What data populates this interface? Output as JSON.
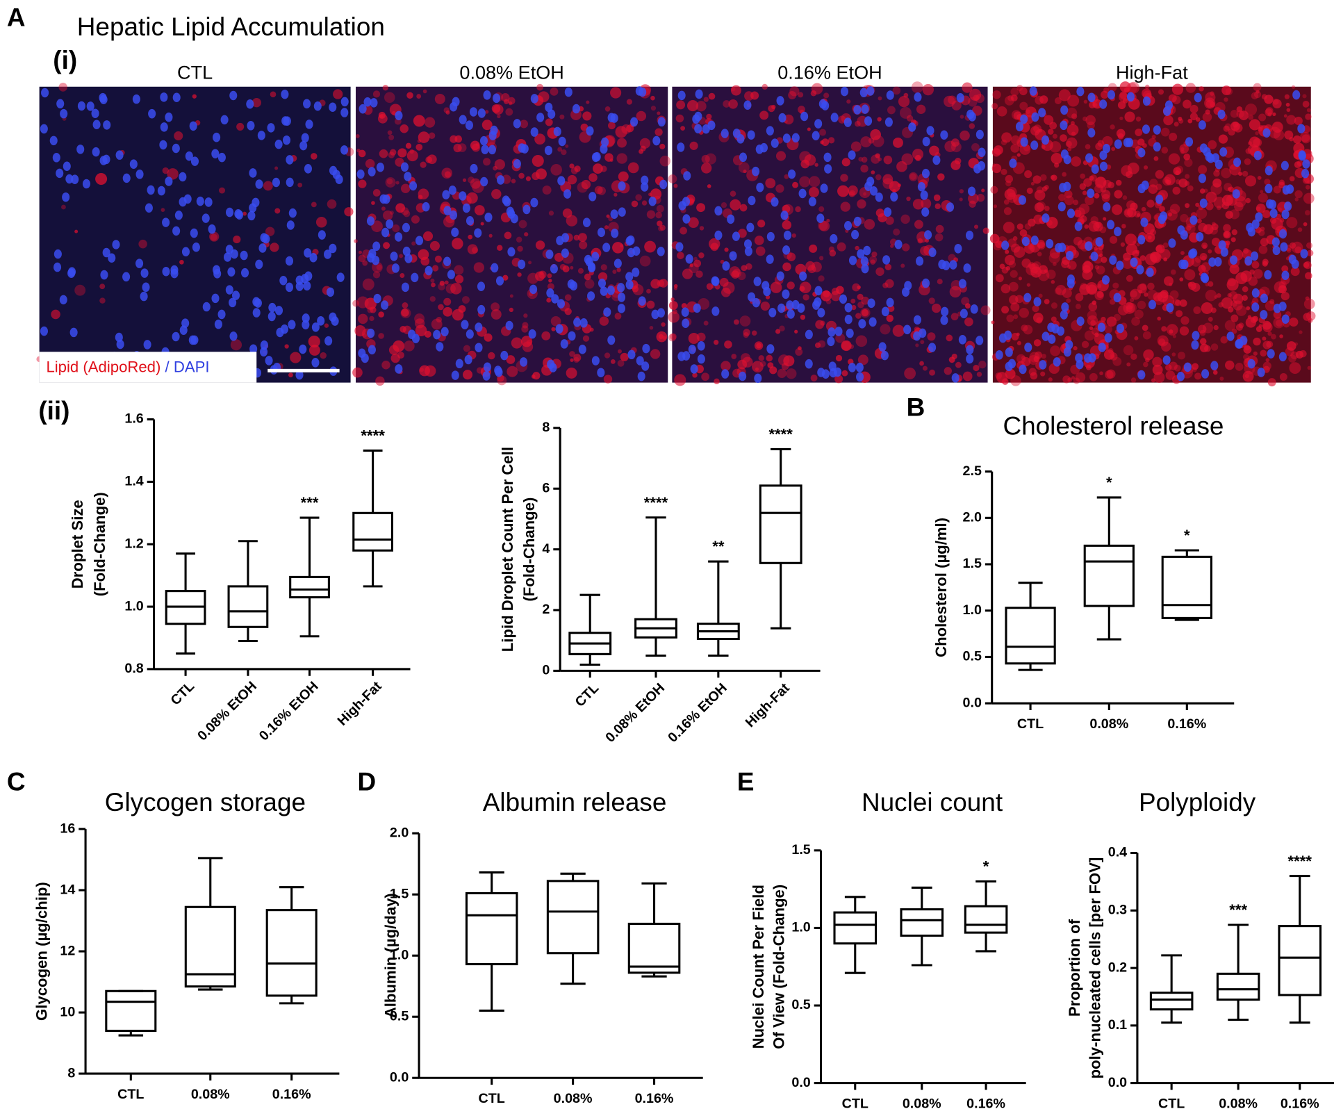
{
  "figure": {
    "panels": [
      "A",
      "B",
      "C",
      "D",
      "E"
    ],
    "title": "Hepatic Lipid Accumulation",
    "sub_i": "(i)",
    "sub_ii": "(ii)",
    "image_labels": [
      "CTL",
      "0.08% EtOH",
      "0.16% EtOH",
      "High-Fat"
    ],
    "legend": {
      "lipid": "Lipid (AdipoRed)",
      "sep": " / ",
      "dapi": "DAPI"
    }
  },
  "chart_data": [
    {
      "type": "box",
      "ylabel": [
        "Droplet Size",
        "(Fold-Change)"
      ],
      "categories": [
        "CTL",
        "0.08% EtOH",
        "0.16% EtOH",
        "High-Fat"
      ],
      "rotate_labels": true,
      "boxes": [
        {
          "min": 0.85,
          "q1": 0.945,
          "median": 1.0,
          "q3": 1.05,
          "max": 1.17
        },
        {
          "min": 0.89,
          "q1": 0.935,
          "median": 0.985,
          "q3": 1.065,
          "max": 1.21
        },
        {
          "min": 0.905,
          "q1": 1.03,
          "median": 1.055,
          "q3": 1.095,
          "max": 1.285
        },
        {
          "min": 1.065,
          "q1": 1.18,
          "median": 1.215,
          "q3": 1.3,
          "max": 1.5
        }
      ],
      "significance": [
        null,
        null,
        "***",
        "****"
      ],
      "ylim": [
        0.8,
        1.6
      ],
      "yticks": [
        0.8,
        {
          "value": 1,
          "label": "1.0"
        },
        1.2,
        1.4,
        1.6
      ]
    },
    {
      "type": "box",
      "ylabel": [
        "Lipid Droplet Count Per Cell",
        "(Fold-Change)"
      ],
      "categories": [
        "CTL",
        "0.08% EtOH",
        "0.16% EtOH",
        "High-Fat"
      ],
      "rotate_labels": true,
      "boxes": [
        {
          "min": 0.2,
          "q1": 0.55,
          "median": 0.9,
          "q3": 1.25,
          "max": 2.5
        },
        {
          "min": 0.5,
          "q1": 1.1,
          "median": 1.4,
          "q3": 1.7,
          "max": 5.05
        },
        {
          "min": 0.5,
          "q1": 1.05,
          "median": 1.3,
          "q3": 1.55,
          "max": 3.6
        },
        {
          "min": 1.4,
          "q1": 3.55,
          "median": 5.2,
          "q3": 6.1,
          "max": 7.3
        }
      ],
      "significance": [
        null,
        "****",
        "**",
        "****"
      ],
      "ylim": [
        0,
        8
      ],
      "yticks": [
        0,
        2,
        4,
        6,
        8
      ]
    },
    {
      "type": "box",
      "title": "Cholesterol release",
      "ylabel": [
        "Cholesterol (µg/ml)"
      ],
      "categories": [
        "CTL",
        "0.08%",
        "0.16%"
      ],
      "boxes": [
        {
          "min": 0.36,
          "q1": 0.43,
          "median": 0.61,
          "q3": 1.03,
          "max": 1.3
        },
        {
          "min": 0.69,
          "q1": 1.05,
          "median": 1.53,
          "q3": 1.7,
          "max": 2.22
        },
        {
          "min": 0.9,
          "q1": 0.92,
          "median": 1.06,
          "q3": 1.58,
          "max": 1.65
        }
      ],
      "significance": [
        null,
        "*",
        "*"
      ],
      "ylim": [
        0,
        2.5
      ],
      "yticks": [
        {
          "value": 0,
          "label": "0.0"
        },
        0.5,
        {
          "value": 1,
          "label": "1.0"
        },
        1.5,
        {
          "value": 2,
          "label": "2.0"
        },
        2.5
      ]
    },
    {
      "type": "box",
      "title": "Glycogen storage",
      "ylabel": [
        "Glycogen (µg/chip)"
      ],
      "categories": [
        "CTL",
        "0.08%",
        "0.16%"
      ],
      "boxes": [
        {
          "min": 9.25,
          "q1": 9.4,
          "median": 10.35,
          "q3": 10.7,
          "max": 10.7
        },
        {
          "min": 10.75,
          "q1": 10.85,
          "median": 11.25,
          "q3": 13.45,
          "max": 15.05
        },
        {
          "min": 10.3,
          "q1": 10.55,
          "median": 11.6,
          "q3": 13.35,
          "max": 14.1
        }
      ],
      "ylim": [
        8,
        16
      ],
      "yticks": [
        8,
        10,
        12,
        14,
        16
      ]
    },
    {
      "type": "box",
      "title": "Albumin release",
      "ylabel": [
        "Albumin (µg/day)"
      ],
      "categories": [
        "CTL",
        "0.08%",
        "0.16%"
      ],
      "boxes": [
        {
          "min": 0.55,
          "q1": 0.93,
          "median": 1.33,
          "q3": 1.51,
          "max": 1.68
        },
        {
          "min": 0.77,
          "q1": 1.02,
          "median": 1.36,
          "q3": 1.61,
          "max": 1.67
        },
        {
          "min": 0.83,
          "q1": 0.86,
          "median": 0.91,
          "q3": 1.26,
          "max": 1.59
        }
      ],
      "ylim": [
        0,
        2
      ],
      "yticks": [
        {
          "value": 0,
          "label": "0.0"
        },
        0.5,
        {
          "value": 1,
          "label": "1.0"
        },
        1.5,
        {
          "value": 2,
          "label": "2.0"
        }
      ]
    },
    {
      "type": "box",
      "title": "Nuclei count",
      "ylabel": [
        "Nuclei Count Per Field",
        "Of View (Fold-Change)"
      ],
      "categories": [
        "CTL",
        "0.08%",
        "0.16%"
      ],
      "boxes": [
        {
          "min": 0.71,
          "q1": 0.9,
          "median": 1.02,
          "q3": 1.1,
          "max": 1.2
        },
        {
          "min": 0.76,
          "q1": 0.95,
          "median": 1.05,
          "q3": 1.12,
          "max": 1.26
        },
        {
          "min": 0.85,
          "q1": 0.97,
          "median": 1.02,
          "q3": 1.14,
          "max": 1.3
        }
      ],
      "significance": [
        null,
        null,
        "*"
      ],
      "ylim": [
        0,
        1.5
      ],
      "yticks": [
        {
          "value": 0,
          "label": "0.0"
        },
        0.5,
        {
          "value": 1,
          "label": "1.0"
        },
        1.5
      ]
    },
    {
      "type": "box",
      "title": "Polyploidy",
      "ylabel": [
        "Proportion of",
        "poly-nucleated cells [per FOV]"
      ],
      "categories": [
        "CTL",
        "0.08%",
        "0.16%"
      ],
      "boxes": [
        {
          "min": 0.105,
          "q1": 0.128,
          "median": 0.145,
          "q3": 0.157,
          "max": 0.222
        },
        {
          "min": 0.11,
          "q1": 0.145,
          "median": 0.163,
          "q3": 0.19,
          "max": 0.275
        },
        {
          "min": 0.105,
          "q1": 0.153,
          "median": 0.218,
          "q3": 0.273,
          "max": 0.36
        }
      ],
      "significance": [
        null,
        "***",
        "****"
      ],
      "ylim": [
        0,
        0.4
      ],
      "yticks": [
        {
          "value": 0,
          "label": "0.0"
        },
        0.1,
        0.2,
        0.3,
        0.4
      ]
    }
  ]
}
